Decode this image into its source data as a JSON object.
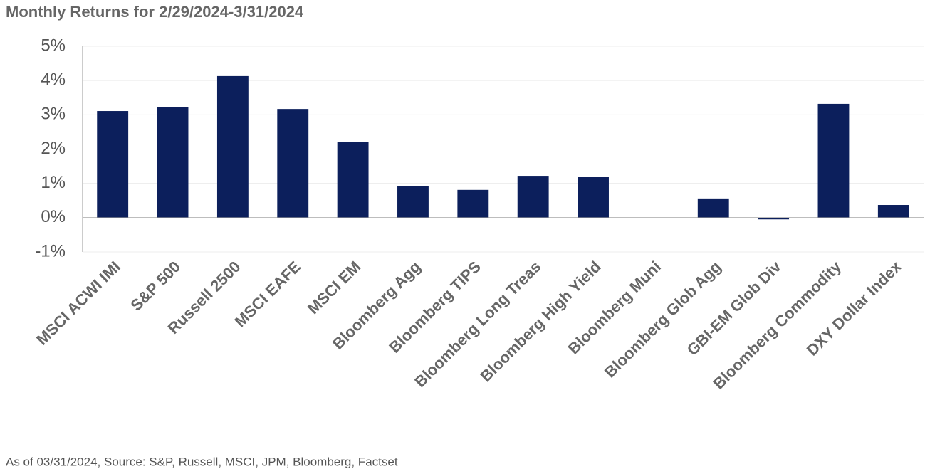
{
  "chart_data": {
    "type": "bar",
    "title": "Monthly Returns for 2/29/2024-3/31/2024",
    "footnote": "As of 03/31/2024, Source: S&P, Russell, MSCI, JPM, Bloomberg, Factset",
    "categories": [
      "MSCI ACWI IMI",
      "S&P 500",
      "Russell 2500",
      "MSCI EAFE",
      "MSCI EM",
      "Bloomberg Agg",
      "Bloomberg TIPS",
      "Bloomberg Long Treas",
      "Bloomberg High Yield",
      "Bloomberg Muni",
      "Bloomberg Glob Agg",
      "GBI-EM Glob Div",
      "Bloomberg Commodity",
      "DXY Dollar Index"
    ],
    "values": [
      3.11,
      3.22,
      4.13,
      3.17,
      2.2,
      0.91,
      0.81,
      1.22,
      1.18,
      0,
      0.56,
      -0.05,
      3.32,
      0.37
    ],
    "color": "#0c1f5c",
    "ylim": [
      -1,
      5
    ],
    "yticks": [
      {
        "value": -1,
        "label": "-1%"
      },
      {
        "value": 0,
        "label": "0%"
      },
      {
        "value": 1,
        "label": "1%"
      },
      {
        "value": 2,
        "label": "2%"
      },
      {
        "value": 3,
        "label": "3%"
      },
      {
        "value": 4,
        "label": "4%"
      },
      {
        "value": 5,
        "label": "5%"
      }
    ],
    "grid": true
  }
}
